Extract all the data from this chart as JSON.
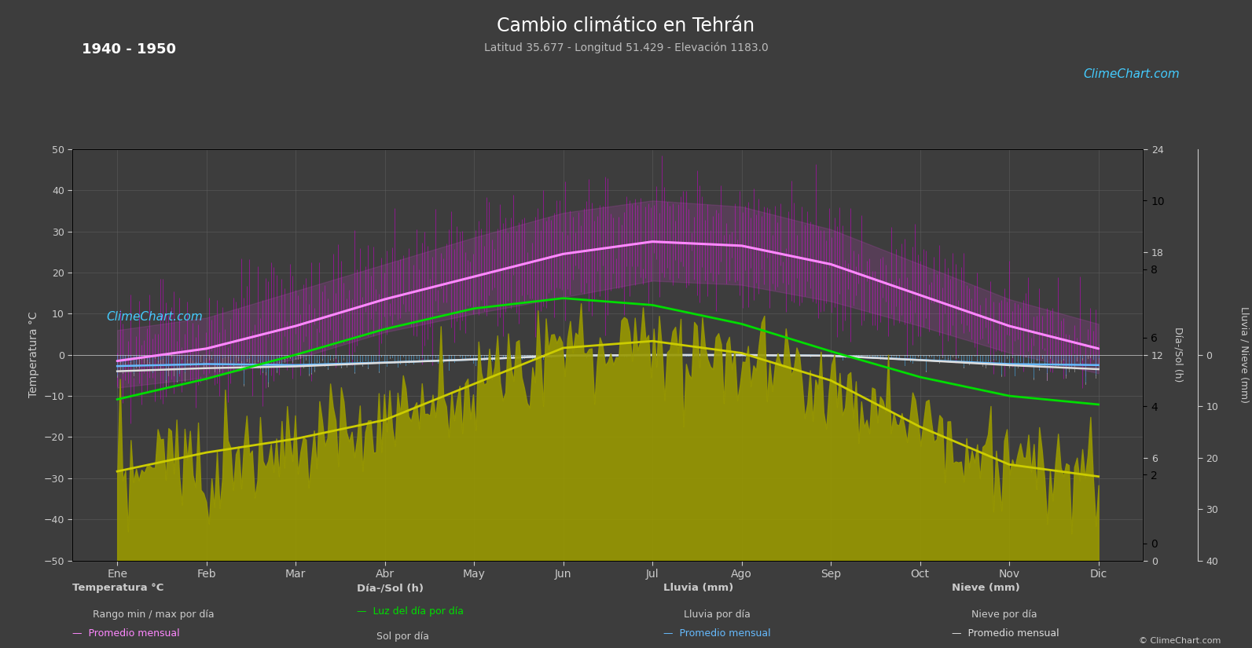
{
  "title": "Cambio climático en Tehrán",
  "subtitle": "Latitud 35.677 - Longitud 51.429 - Elevación 1183.0",
  "year_range": "1940 - 1950",
  "bg_color": "#3d3d3d",
  "plot_bg_color": "#3d3d3d",
  "months": [
    "Ene",
    "Feb",
    "Mar",
    "Abr",
    "May",
    "Jun",
    "Jul",
    "Ago",
    "Sep",
    "Oct",
    "Nov",
    "Dic"
  ],
  "temp_avg_monthly": [
    -1.5,
    1.5,
    7.0,
    13.5,
    19.0,
    24.5,
    27.5,
    26.5,
    22.0,
    14.5,
    7.0,
    1.5
  ],
  "temp_max_monthly": [
    6.0,
    9.0,
    15.5,
    22.0,
    28.5,
    34.5,
    37.5,
    36.0,
    30.5,
    22.0,
    13.5,
    7.5
  ],
  "temp_min_monthly": [
    -8.0,
    -5.5,
    -1.0,
    5.5,
    10.0,
    14.0,
    18.0,
    17.0,
    13.0,
    7.0,
    0.5,
    -4.5
  ],
  "daylight_monthly": [
    9.4,
    10.6,
    12.0,
    13.5,
    14.7,
    15.3,
    14.9,
    13.8,
    12.2,
    10.7,
    9.6,
    9.1
  ],
  "sunshine_monthly": [
    5.2,
    6.3,
    7.1,
    8.2,
    10.3,
    12.4,
    12.8,
    12.1,
    10.5,
    7.8,
    5.6,
    4.9
  ],
  "rain_daily_max": [
    3.5,
    3.0,
    3.2,
    2.5,
    1.8,
    0.5,
    0.2,
    0.2,
    0.5,
    2.0,
    3.2,
    3.5
  ],
  "rain_avg_monthly": [
    2.2,
    1.8,
    2.0,
    1.5,
    0.9,
    0.15,
    0.05,
    0.05,
    0.18,
    1.0,
    1.8,
    2.0
  ],
  "snow_daily_max": [
    1.8,
    1.4,
    0.6,
    0.1,
    0.0,
    0.0,
    0.0,
    0.0,
    0.0,
    0.1,
    0.5,
    1.5
  ],
  "snow_avg_monthly": [
    1.0,
    0.8,
    0.25,
    0.04,
    0.0,
    0.0,
    0.0,
    0.0,
    0.0,
    0.04,
    0.22,
    0.8
  ],
  "title_color": "#ffffff",
  "subtitle_color": "#bbbbbb",
  "year_color": "#ffffff",
  "axis_color": "#cccccc",
  "grid_color": "#606060",
  "temp_bar_color": "#cc00cc",
  "temp_line_color": "#ff88ff",
  "daylight_line_color": "#00dd00",
  "sunshine_fill_color": "#999900",
  "sunshine_line_color": "#cccc00",
  "rain_bar_color": "#4499cc",
  "snow_bar_color": "#aaaaaa",
  "rain_avg_color": "#66bbff",
  "snow_avg_color": "#dddddd",
  "logo_text_color": "#44ccff",
  "temp_ylim": [
    -50,
    50
  ],
  "sun_ylim": [
    0,
    24
  ],
  "rain_ylim_mm": [
    0,
    40
  ],
  "rain_scale": 1.25
}
